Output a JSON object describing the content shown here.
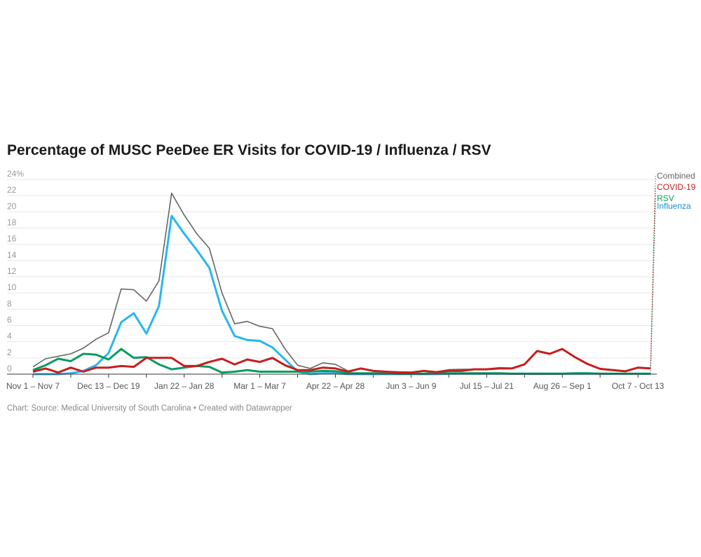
{
  "chart_data": {
    "type": "line",
    "title": "Percentage of MUSC PeeDee ER Visits for COVID-19 / Influenza / RSV",
    "footer": "Chart: Source: Medical University of South Carolina • Created with Datawrapper",
    "ylim": [
      0,
      24
    ],
    "yticks": [
      "0",
      "2",
      "4",
      "6",
      "8",
      "10",
      "12",
      "14",
      "16",
      "18",
      "20",
      "22",
      "24%"
    ],
    "grid": true,
    "legend": "right-end labels",
    "x_labels": [
      {
        "index": 0,
        "label": "Nov 1 – Nov 7"
      },
      {
        "index": 6,
        "label": "Dec 13 – Dec 19"
      },
      {
        "index": 12,
        "label": "Jan 22 – Jan 28"
      },
      {
        "index": 18,
        "label": "Mar 1 – Mar 7"
      },
      {
        "index": 24,
        "label": "Apr 22 – Apr 28"
      },
      {
        "index": 30,
        "label": "Jun 3 – Jun 9"
      },
      {
        "index": 36,
        "label": "Jul 15 – Jul 21"
      },
      {
        "index": 42,
        "label": "Aug 26 – Sep 1"
      },
      {
        "index": 48,
        "label": "Oct 7 - Oct 13"
      }
    ],
    "series": [
      {
        "name": "Combined",
        "color": "#666666",
        "width": 1.6,
        "values": [
          0.9,
          1.9,
          2.2,
          2.5,
          3.2,
          4.3,
          5.1,
          10.5,
          10.4,
          9.0,
          11.5,
          22.3,
          19.6,
          17.3,
          15.5,
          10.0,
          6.2,
          6.5,
          5.9,
          5.6,
          3.1,
          1.1,
          0.7,
          1.4,
          1.2,
          0.4,
          0.7,
          0.45,
          0.35,
          0.3,
          0.25,
          0.4,
          0.3,
          0.55,
          0.6,
          0.6,
          0.65,
          0.8,
          0.75,
          1.25,
          2.9,
          2.55,
          3.15,
          2.15,
          1.3,
          0.7,
          0.55,
          0.4,
          0.85,
          0.75
        ]
      },
      {
        "name": "Influenza",
        "color": "#29b6f0",
        "labelColor": "#1d8fc5",
        "width": 3,
        "values": [
          0,
          0,
          0,
          0.1,
          0.4,
          1.1,
          2.6,
          6.4,
          7.5,
          5.0,
          8.4,
          19.5,
          17.3,
          15.3,
          13.1,
          7.8,
          4.7,
          4.2,
          4.1,
          3.3,
          1.8,
          0.3,
          0,
          0.1,
          0.1,
          0,
          0,
          0,
          0,
          0,
          0,
          0,
          0,
          0.05,
          0.05,
          0.05,
          0.05,
          0.05,
          0.05,
          0.05,
          0.05,
          0.05,
          0.05,
          0.05,
          0.05,
          0.05,
          0.05,
          0.05,
          0.05,
          0.05
        ]
      },
      {
        "name": "RSV",
        "color": "#0a9b60",
        "width": 3,
        "values": [
          0.5,
          1.1,
          1.9,
          1.6,
          2.5,
          2.4,
          1.8,
          3.1,
          2.0,
          2.1,
          1.2,
          0.6,
          0.8,
          1.0,
          0.9,
          0.2,
          0.3,
          0.5,
          0.3,
          0.3,
          0.3,
          0.3,
          0.3,
          0.4,
          0.35,
          0.1,
          0.1,
          0.1,
          0.1,
          0.05,
          0.05,
          0.05,
          0.1,
          0.1,
          0.1,
          0.1,
          0.1,
          0.1,
          0.05,
          0.05,
          0.05,
          0.05,
          0.05,
          0.1,
          0.1,
          0.05,
          0.05,
          0.05,
          0.05,
          0.05
        ]
      },
      {
        "name": "COVID-19",
        "color": "#c71e1d",
        "width": 3,
        "values": [
          0.3,
          0.7,
          0.2,
          0.8,
          0.3,
          0.8,
          0.8,
          1.0,
          0.9,
          2.0,
          2.0,
          2.0,
          1.0,
          1.0,
          1.5,
          1.9,
          1.2,
          1.8,
          1.5,
          2.0,
          1.1,
          0.5,
          0.5,
          0.8,
          0.7,
          0.3,
          0.7,
          0.4,
          0.3,
          0.2,
          0.2,
          0.4,
          0.25,
          0.4,
          0.4,
          0.6,
          0.6,
          0.7,
          0.7,
          1.2,
          2.85,
          2.5,
          3.1,
          2.1,
          1.25,
          0.65,
          0.5,
          0.35,
          0.8,
          0.7
        ]
      }
    ]
  }
}
